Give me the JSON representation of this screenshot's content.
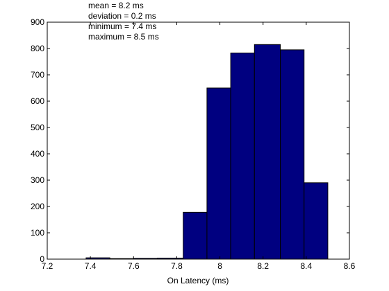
{
  "chart_data": {
    "type": "bar",
    "title": "",
    "xlabel": "On Latency (ms)",
    "ylabel": "",
    "xlim": [
      7.2,
      8.6
    ],
    "ylim": [
      0,
      900
    ],
    "xticks": [
      "7.2",
      "7.4",
      "7.6",
      "7.8",
      "8",
      "8.2",
      "8.4",
      "8.6"
    ],
    "yticks": [
      "0",
      "100",
      "200",
      "300",
      "400",
      "500",
      "600",
      "700",
      "800",
      "900"
    ],
    "grid": false,
    "bar_color": "#000080",
    "bins": [
      {
        "start": 7.38,
        "end": 7.49,
        "value": 5
      },
      {
        "start": 7.49,
        "end": 7.6,
        "value": 2
      },
      {
        "start": 7.6,
        "end": 7.71,
        "value": 3
      },
      {
        "start": 7.71,
        "end": 7.83,
        "value": 4
      },
      {
        "start": 7.83,
        "end": 7.94,
        "value": 178
      },
      {
        "start": 7.94,
        "end": 8.05,
        "value": 650
      },
      {
        "start": 8.05,
        "end": 8.16,
        "value": 783
      },
      {
        "start": 8.16,
        "end": 8.28,
        "value": 815
      },
      {
        "start": 8.28,
        "end": 8.39,
        "value": 795
      },
      {
        "start": 8.39,
        "end": 8.5,
        "value": 290
      }
    ],
    "annotations": [
      "mean = 8.2 ms",
      "deviation = 0.2 ms",
      "minimum = 7.4 ms",
      "maximum = 8.5 ms"
    ]
  }
}
